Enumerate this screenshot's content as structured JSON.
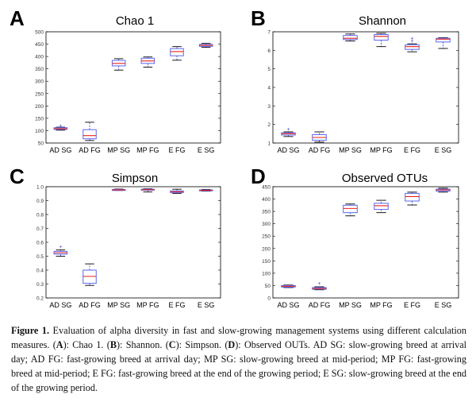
{
  "chart_data": [
    {
      "type": "boxplot",
      "panel": "A",
      "title": "Chao 1",
      "categories": [
        "AD SG",
        "AD FG",
        "MP SG",
        "MP FG",
        "E FG",
        "E SG"
      ],
      "ylim": [
        50,
        500
      ],
      "yticks": [
        50,
        100,
        150,
        200,
        250,
        300,
        350,
        400,
        450,
        500
      ],
      "boxes": [
        {
          "min": 102,
          "q1": 105,
          "median": 108,
          "q3": 112,
          "max": 114,
          "outliers": [
            121
          ]
        },
        {
          "min": 60,
          "q1": 67,
          "median": 80,
          "q3": 104,
          "max": 134,
          "outliers": []
        },
        {
          "min": 345,
          "q1": 362,
          "median": 372,
          "q3": 384,
          "max": 391,
          "outliers": []
        },
        {
          "min": 357,
          "q1": 372,
          "median": 382,
          "q3": 393,
          "max": 398,
          "outliers": []
        },
        {
          "min": 385,
          "q1": 403,
          "median": 420,
          "q3": 432,
          "max": 440,
          "outliers": []
        },
        {
          "min": 437,
          "q1": 441,
          "median": 445,
          "q3": 449,
          "max": 453,
          "outliers": []
        }
      ]
    },
    {
      "type": "boxplot",
      "panel": "B",
      "title": "Shannon",
      "categories": [
        "AD SG",
        "AD FG",
        "MP SG",
        "MP FG",
        "E FG",
        "E SG"
      ],
      "ylim": [
        1,
        7
      ],
      "yticks": [
        1,
        2,
        3,
        4,
        5,
        6,
        7
      ],
      "boxes": [
        {
          "min": 1.35,
          "q1": 1.43,
          "median": 1.5,
          "q3": 1.55,
          "max": 1.6,
          "outliers": [
            1.75
          ]
        },
        {
          "min": 1.05,
          "q1": 1.15,
          "median": 1.3,
          "q3": 1.45,
          "max": 1.6,
          "outliers": []
        },
        {
          "min": 6.5,
          "q1": 6.58,
          "median": 6.65,
          "q3": 6.8,
          "max": 6.88,
          "outliers": []
        },
        {
          "min": 6.2,
          "q1": 6.55,
          "median": 6.75,
          "q3": 6.85,
          "max": 6.92,
          "outliers": []
        },
        {
          "min": 5.92,
          "q1": 6.05,
          "median": 6.2,
          "q3": 6.3,
          "max": 6.35,
          "outliers": [
            6.5,
            6.65
          ]
        },
        {
          "min": 6.1,
          "q1": 6.45,
          "median": 6.6,
          "q3": 6.65,
          "max": 6.68,
          "outliers": []
        }
      ]
    },
    {
      "type": "boxplot",
      "panel": "C",
      "title": "Simpson",
      "categories": [
        "AD SG",
        "AD FG",
        "MP SG",
        "MP FG",
        "E FG",
        "E SG"
      ],
      "ylim": [
        0.2,
        1.0
      ],
      "yticks": [
        0.2,
        0.3,
        0.4,
        0.5,
        0.6,
        0.7,
        0.8,
        0.9,
        1.0
      ],
      "boxes": [
        {
          "min": 0.5,
          "q1": 0.515,
          "median": 0.525,
          "q3": 0.535,
          "max": 0.545,
          "outliers": [
            0.57
          ]
        },
        {
          "min": 0.29,
          "q1": 0.305,
          "median": 0.355,
          "q3": 0.4,
          "max": 0.445,
          "outliers": []
        },
        {
          "min": 0.973,
          "q1": 0.975,
          "median": 0.977,
          "q3": 0.98,
          "max": 0.983,
          "outliers": []
        },
        {
          "min": 0.962,
          "q1": 0.975,
          "median": 0.978,
          "q3": 0.982,
          "max": 0.985,
          "outliers": []
        },
        {
          "min": 0.952,
          "q1": 0.958,
          "median": 0.963,
          "q3": 0.97,
          "max": 0.982,
          "outliers": []
        },
        {
          "min": 0.968,
          "q1": 0.972,
          "median": 0.974,
          "q3": 0.977,
          "max": 0.98,
          "outliers": []
        }
      ]
    },
    {
      "type": "boxplot",
      "panel": "D",
      "title": "Observed OTUs",
      "categories": [
        "AD SG",
        "AD FG",
        "MP SG",
        "MP FG",
        "E FG",
        "E SG"
      ],
      "ylim": [
        0,
        450
      ],
      "yticks": [
        0,
        50,
        100,
        150,
        200,
        250,
        300,
        350,
        400,
        450
      ],
      "boxes": [
        {
          "min": 42,
          "q1": 44,
          "median": 47,
          "q3": 50,
          "max": 52,
          "outliers": []
        },
        {
          "min": 33,
          "q1": 35,
          "median": 38,
          "q3": 42,
          "max": 45,
          "outliers": [
            60
          ]
        },
        {
          "min": 332,
          "q1": 345,
          "median": 362,
          "q3": 375,
          "max": 380,
          "outliers": []
        },
        {
          "min": 345,
          "q1": 358,
          "median": 373,
          "q3": 383,
          "max": 395,
          "outliers": []
        },
        {
          "min": 376,
          "q1": 392,
          "median": 410,
          "q3": 423,
          "max": 428,
          "outliers": []
        },
        {
          "min": 428,
          "q1": 432,
          "median": 437,
          "q3": 440,
          "max": 444,
          "outliers": []
        }
      ]
    }
  ],
  "style": {
    "box_color": "#5a66f0",
    "median_color": "#e8241b",
    "whisker_color": "#2d3ac8",
    "outlier_color": "#3a46d6"
  },
  "caption": {
    "label": "Figure 1.",
    "text_1": " Evaluation of alpha diversity in fast and slow-growing management systems using different calculation measures. (",
    "a": "A",
    "text_2": "): Chao 1. (",
    "b": "B",
    "text_3": "): Shannon. (",
    "c": "C",
    "text_4": "): Simpson. (",
    "d": "D",
    "text_5": "): Observed OUTs. AD SG: slow-growing breed at arrival day; AD FG: fast-growing breed at arrival day; MP SG: slow-growing breed at mid-period; MP FG: fast-growing breed at mid-period; E FG: fast-growing breed at the end of the growing period; E SG: slow-growing breed at the end of the growing period."
  }
}
